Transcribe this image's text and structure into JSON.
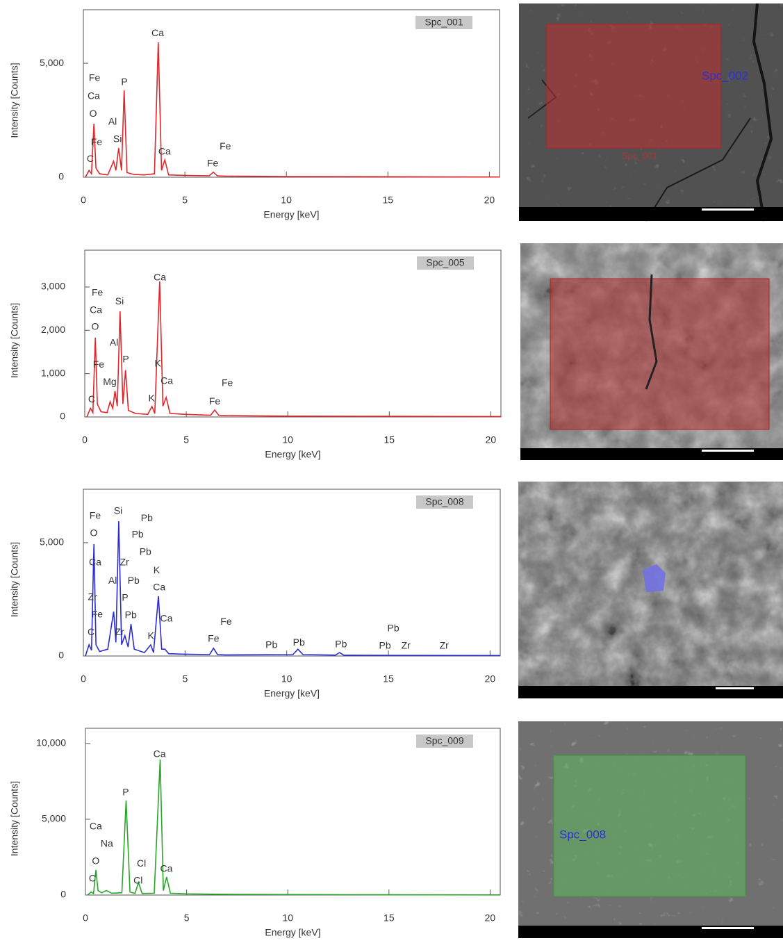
{
  "chart_data": [
    {
      "type": "line",
      "xlabel": "Energy [keV]",
      "ylabel": "Intensity [Counts]",
      "xlim": [
        0,
        20.5
      ],
      "xticks": [
        0,
        5,
        10,
        15,
        20
      ],
      "ylim": [
        0,
        7350
      ],
      "yticks": [
        0,
        {
          "value": 5000,
          "label": "5,000"
        }
      ],
      "x": [
        0.1,
        0.28,
        0.4,
        0.52,
        0.62,
        0.8,
        1.2,
        1.49,
        1.6,
        1.74,
        1.88,
        2.01,
        2.15,
        2.5,
        3.0,
        3.5,
        3.69,
        3.85,
        4.01,
        4.2,
        5,
        6.2,
        6.4,
        6.6,
        7,
        10,
        15,
        20.5
      ],
      "series": [
        {
          "name": "Spc_001",
          "color": "#e0262b",
          "values": [
            0,
            300,
            150,
            2350,
            400,
            150,
            100,
            700,
            300,
            1280,
            300,
            3810,
            200,
            120,
            100,
            150,
            5920,
            300,
            760,
            100,
            80,
            60,
            220,
            60,
            50,
            30,
            20,
            10
          ]
        }
      ],
      "annotations": [
        {
          "text": "Fe",
          "x": 0.55,
          "y": 4330
        },
        {
          "text": "Ca",
          "x": 0.51,
          "y": 3540
        },
        {
          "text": "O",
          "x": 0.48,
          "y": 2770
        },
        {
          "text": "Al",
          "x": 1.44,
          "y": 2410
        },
        {
          "text": "P",
          "x": 2.02,
          "y": 4150
        },
        {
          "text": "Si",
          "x": 1.68,
          "y": 1650
        },
        {
          "text": "Fe",
          "x": 0.65,
          "y": 1520
        },
        {
          "text": "C",
          "x": 0.34,
          "y": 790
        },
        {
          "text": "Ca",
          "x": 3.66,
          "y": 6310
        },
        {
          "text": "Ca",
          "x": 4.0,
          "y": 1100
        },
        {
          "text": "Fe",
          "x": 6.99,
          "y": 1340
        },
        {
          "text": "Fe",
          "x": 6.37,
          "y": 580
        }
      ]
    },
    {
      "type": "line",
      "xlabel": "Energy [keV]",
      "ylabel": "Intensity [Counts]",
      "xlim": [
        0,
        20.5
      ],
      "xticks": [
        0,
        5,
        10,
        15,
        20
      ],
      "ylim": [
        0,
        3850
      ],
      "yticks": [
        0,
        {
          "value": 1000,
          "label": "1,000"
        },
        {
          "value": 2000,
          "label": "2,000"
        },
        {
          "value": 3000,
          "label": "3,000"
        }
      ],
      "x": [
        0.1,
        0.28,
        0.4,
        0.52,
        0.62,
        0.8,
        1.1,
        1.25,
        1.38,
        1.49,
        1.6,
        1.74,
        1.88,
        2.01,
        2.15,
        2.5,
        3.1,
        3.31,
        3.45,
        3.69,
        3.85,
        4.01,
        4.2,
        5,
        6.2,
        6.4,
        6.6,
        7,
        10,
        15,
        20.5
      ],
      "series": [
        {
          "name": "Spc_005",
          "color": "#e0262b",
          "values": [
            0,
            200,
            100,
            1830,
            300,
            120,
            100,
            350,
            200,
            600,
            250,
            2440,
            300,
            1080,
            150,
            80,
            60,
            240,
            80,
            3130,
            250,
            450,
            80,
            60,
            40,
            160,
            40,
            30,
            20,
            15,
            10
          ]
        }
      ],
      "annotations": [
        {
          "text": "Fe",
          "x": 0.62,
          "y": 2860
        },
        {
          "text": "Ca",
          "x": 0.55,
          "y": 2460
        },
        {
          "text": "O",
          "x": 0.51,
          "y": 2070
        },
        {
          "text": "Si",
          "x": 1.71,
          "y": 2660
        },
        {
          "text": "Al",
          "x": 1.44,
          "y": 1700
        },
        {
          "text": "Fe",
          "x": 0.68,
          "y": 1200
        },
        {
          "text": "P",
          "x": 2.02,
          "y": 1320
        },
        {
          "text": "Mg",
          "x": 1.23,
          "y": 800
        },
        {
          "text": "C",
          "x": 0.34,
          "y": 400
        },
        {
          "text": "Ca",
          "x": 3.7,
          "y": 3210
        },
        {
          "text": "K",
          "x": 3.6,
          "y": 1220
        },
        {
          "text": "Ca",
          "x": 4.04,
          "y": 820
        },
        {
          "text": "K",
          "x": 3.29,
          "y": 420
        },
        {
          "text": "Fe",
          "x": 7.02,
          "y": 770
        },
        {
          "text": "Fe",
          "x": 6.4,
          "y": 350
        }
      ]
    },
    {
      "type": "line",
      "xlabel": "Energy [keV]",
      "ylabel": "Intensity [Counts]",
      "xlim": [
        0,
        20.5
      ],
      "xticks": [
        0,
        5,
        10,
        15,
        20
      ],
      "ylim": [
        0,
        7360
      ],
      "yticks": [
        0,
        {
          "value": 5000,
          "label": "5,000"
        }
      ],
      "x": [
        0.1,
        0.28,
        0.4,
        0.52,
        0.62,
        0.8,
        1.2,
        1.49,
        1.6,
        1.74,
        1.88,
        2.04,
        2.2,
        2.34,
        2.5,
        3.0,
        3.31,
        3.45,
        3.69,
        3.85,
        4.01,
        4.2,
        5,
        6.2,
        6.4,
        6.6,
        7,
        10.3,
        10.55,
        10.8,
        12.4,
        12.6,
        12.8,
        15,
        20.5
      ],
      "series": [
        {
          "name": "Spc_008",
          "color": "#2b2bd6",
          "values": [
            0,
            500,
            250,
            4940,
            500,
            200,
            300,
            1960,
            600,
            5950,
            500,
            900,
            400,
            1410,
            300,
            150,
            490,
            150,
            2640,
            300,
            300,
            100,
            80,
            60,
            340,
            60,
            50,
            60,
            300,
            60,
            40,
            150,
            40,
            30,
            20
          ]
        }
      ],
      "annotations": [
        {
          "text": "Fe",
          "x": 0.58,
          "y": 6170
        },
        {
          "text": "O",
          "x": 0.51,
          "y": 5400
        },
        {
          "text": "Si",
          "x": 1.71,
          "y": 6380
        },
        {
          "text": "Pb",
          "x": 3.12,
          "y": 6070
        },
        {
          "text": "Pb",
          "x": 2.67,
          "y": 5340
        },
        {
          "text": "Pb",
          "x": 3.05,
          "y": 4570
        },
        {
          "text": "Ca",
          "x": 0.58,
          "y": 4110
        },
        {
          "text": "Zr",
          "x": 2.02,
          "y": 4110
        },
        {
          "text": "K",
          "x": 3.6,
          "y": 3770
        },
        {
          "text": "Al",
          "x": 1.44,
          "y": 3310
        },
        {
          "text": "Pb",
          "x": 2.47,
          "y": 3310
        },
        {
          "text": "Ca",
          "x": 3.73,
          "y": 3010
        },
        {
          "text": "Zr",
          "x": 0.45,
          "y": 2580
        },
        {
          "text": "P",
          "x": 2.05,
          "y": 2550
        },
        {
          "text": "Fe",
          "x": 0.68,
          "y": 1810
        },
        {
          "text": "Pb",
          "x": 2.33,
          "y": 1780
        },
        {
          "text": "Ca",
          "x": 4.08,
          "y": 1630
        },
        {
          "text": "C",
          "x": 0.38,
          "y": 1040
        },
        {
          "text": "Zr",
          "x": 1.78,
          "y": 1040
        },
        {
          "text": "K",
          "x": 3.32,
          "y": 860
        },
        {
          "text": "Fe",
          "x": 7.02,
          "y": 1500
        },
        {
          "text": "Fe",
          "x": 6.4,
          "y": 740
        },
        {
          "text": "Pb",
          "x": 9.25,
          "y": 460
        },
        {
          "text": "Pb",
          "x": 10.6,
          "y": 580
        },
        {
          "text": "Pb",
          "x": 12.67,
          "y": 490
        },
        {
          "text": "Pb",
          "x": 15.24,
          "y": 1200
        },
        {
          "text": "Pb",
          "x": 14.83,
          "y": 430
        },
        {
          "text": "Zr",
          "x": 15.86,
          "y": 430
        },
        {
          "text": "Zr",
          "x": 17.74,
          "y": 430
        }
      ]
    },
    {
      "type": "line",
      "xlabel": "Energy [keV]",
      "ylabel": "Intensity [Counts]",
      "xlim": [
        0,
        20.5
      ],
      "xticks": [
        0,
        5,
        10,
        15,
        20
      ],
      "ylim": [
        0,
        11000
      ],
      "yticks": [
        0,
        {
          "value": 5000,
          "label": "5,000"
        },
        {
          "value": 10000,
          "label": "10,000"
        }
      ],
      "x": [
        0.1,
        0.28,
        0.4,
        0.52,
        0.62,
        0.8,
        1.04,
        1.3,
        1.8,
        2.01,
        2.2,
        2.45,
        2.62,
        2.8,
        3.4,
        3.69,
        3.85,
        4.01,
        4.2,
        5,
        7,
        10,
        15,
        20.5
      ],
      "series": [
        {
          "name": "Spc_009",
          "color": "#2aa52a",
          "values": [
            0,
            200,
            100,
            1650,
            300,
            150,
            300,
            120,
            150,
            6240,
            200,
            100,
            830,
            100,
            120,
            8940,
            300,
            1190,
            120,
            80,
            50,
            30,
            20,
            10
          ]
        }
      ],
      "annotations": [
        {
          "text": "Ca",
          "x": 0.51,
          "y": 4500
        },
        {
          "text": "Na",
          "x": 1.06,
          "y": 3350
        },
        {
          "text": "O",
          "x": 0.51,
          "y": 2200
        },
        {
          "text": "C",
          "x": 0.34,
          "y": 1060
        },
        {
          "text": "P",
          "x": 1.99,
          "y": 6740
        },
        {
          "text": "Cl",
          "x": 2.77,
          "y": 2060
        },
        {
          "text": "Cl",
          "x": 2.6,
          "y": 920
        },
        {
          "text": "Ca",
          "x": 3.66,
          "y": 9270
        },
        {
          "text": "Ca",
          "x": 4.0,
          "y": 1700
        }
      ]
    }
  ],
  "images": [
    {
      "labels": [
        "Spc_002",
        "Spc_001"
      ]
    },
    {
      "labels": []
    },
    {
      "labels": []
    },
    {
      "labels": [
        "Spc_008"
      ]
    }
  ]
}
